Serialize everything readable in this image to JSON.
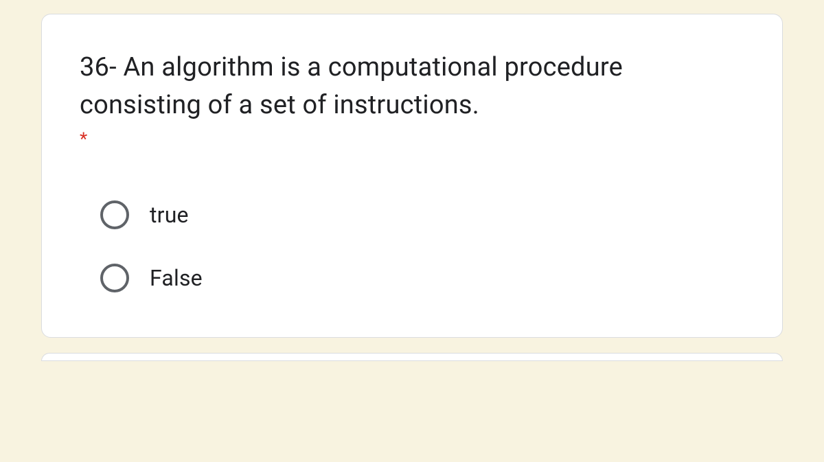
{
  "question": {
    "text": "36- An algorithm is a computational procedure consisting of a set of instructions.",
    "required_mark": "*",
    "options": [
      {
        "label": "true"
      },
      {
        "label": "False"
      }
    ]
  },
  "colors": {
    "page_background": "#f8f3e0",
    "card_background": "#ffffff",
    "card_border": "#dadce0",
    "text_primary": "#202124",
    "radio_border": "#5f6368",
    "required_red": "#d93025"
  }
}
